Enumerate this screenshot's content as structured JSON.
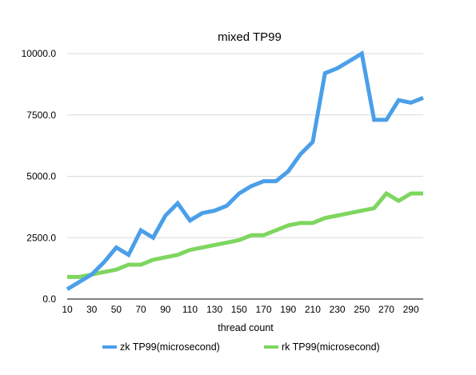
{
  "chart_data": {
    "type": "line",
    "title": "mixed TP99",
    "xlabel": "thread count",
    "ylabel": "",
    "x": [
      10,
      20,
      30,
      40,
      50,
      60,
      70,
      80,
      90,
      100,
      110,
      120,
      130,
      140,
      150,
      160,
      170,
      180,
      190,
      200,
      210,
      220,
      230,
      240,
      250,
      260,
      270,
      280,
      290,
      300
    ],
    "x_tick_labels": [
      "10",
      "30",
      "50",
      "70",
      "90",
      "110",
      "130",
      "150",
      "170",
      "190",
      "210",
      "230",
      "250",
      "270",
      "290"
    ],
    "x_tick_values": [
      10,
      30,
      50,
      70,
      90,
      110,
      130,
      150,
      170,
      190,
      210,
      230,
      250,
      270,
      290
    ],
    "xlim": [
      10,
      300
    ],
    "y_tick_labels": [
      "0.0",
      "2500.0",
      "5000.0",
      "7500.0",
      "10000.0"
    ],
    "y_tick_values": [
      0,
      2500,
      5000,
      7500,
      10000
    ],
    "ylim": [
      0,
      10000
    ],
    "grid": true,
    "legend_position": "bottom",
    "series": [
      {
        "name": "zk TP99(microsecond)",
        "color": "#4a9fe8",
        "values": [
          400,
          700,
          1000,
          1500,
          2100,
          1800,
          2800,
          2500,
          3400,
          3900,
          3200,
          3500,
          3600,
          3800,
          4300,
          4600,
          4800,
          4800,
          5200,
          5900,
          6400,
          9200,
          9400,
          9700,
          10000,
          7300,
          7300,
          8100,
          8000,
          8200
        ]
      },
      {
        "name": "rk TP99(microsecond)",
        "color": "#7ed65f",
        "values": [
          900,
          900,
          1000,
          1100,
          1200,
          1400,
          1400,
          1600,
          1700,
          1800,
          2000,
          2100,
          2200,
          2300,
          2400,
          2600,
          2600,
          2800,
          3000,
          3100,
          3100,
          3300,
          3400,
          3500,
          3600,
          3700,
          4300,
          4000,
          4300,
          4300
        ]
      }
    ]
  }
}
